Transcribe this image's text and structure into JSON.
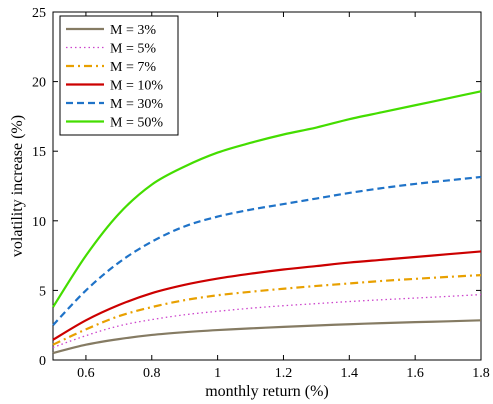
{
  "chart_data": {
    "type": "line",
    "xlabel": "monthly return (%)",
    "ylabel": "volatility increase (%)",
    "xlim": [
      0.5,
      1.8
    ],
    "ylim": [
      0,
      25
    ],
    "xticks": [
      0.6,
      0.8,
      1,
      1.2,
      1.4,
      1.6,
      1.8
    ],
    "xtick_labels": [
      "0.6",
      "0.8",
      "1",
      "1.2",
      "1.4",
      "1.6",
      "1.8"
    ],
    "yticks": [
      0,
      5,
      10,
      15,
      20,
      25
    ],
    "ytick_labels": [
      "0",
      "5",
      "10",
      "15",
      "20",
      "25"
    ],
    "grid": false,
    "legend_position": "top-left",
    "x": [
      0.5,
      0.6,
      0.7,
      0.8,
      0.9,
      1.0,
      1.1,
      1.2,
      1.3,
      1.4,
      1.5,
      1.6,
      1.7,
      1.8
    ],
    "series": [
      {
        "name": "M = 3%",
        "color": "#857b63",
        "dash": "solid",
        "values": [
          0.5,
          1.1,
          1.5,
          1.8,
          2.0,
          2.15,
          2.27,
          2.38,
          2.48,
          2.57,
          2.65,
          2.72,
          2.78,
          2.85
        ]
      },
      {
        "name": "M = 5%",
        "color": "#cc44cc",
        "dash": "dotted",
        "values": [
          0.9,
          1.75,
          2.45,
          2.9,
          3.25,
          3.5,
          3.72,
          3.9,
          4.05,
          4.2,
          4.33,
          4.45,
          4.57,
          4.7
        ]
      },
      {
        "name": "M = 7%",
        "color": "#e8a000",
        "dash": "dashdot",
        "values": [
          1.1,
          2.2,
          3.15,
          3.8,
          4.3,
          4.65,
          4.9,
          5.12,
          5.32,
          5.5,
          5.68,
          5.83,
          5.97,
          6.1
        ]
      },
      {
        "name": "M = 10%",
        "color": "#cc0000",
        "dash": "solid",
        "values": [
          1.45,
          2.85,
          3.95,
          4.8,
          5.4,
          5.85,
          6.2,
          6.5,
          6.75,
          7.0,
          7.2,
          7.4,
          7.6,
          7.8
        ]
      },
      {
        "name": "M = 30%",
        "color": "#1f73c8",
        "dash": "dashed",
        "values": [
          2.5,
          5.0,
          7.0,
          8.5,
          9.6,
          10.3,
          10.8,
          11.2,
          11.6,
          12.0,
          12.35,
          12.65,
          12.9,
          13.15
        ]
      },
      {
        "name": "M = 50%",
        "color": "#44dd00",
        "dash": "solid",
        "values": [
          3.8,
          7.5,
          10.5,
          12.6,
          13.9,
          14.9,
          15.6,
          16.2,
          16.7,
          17.3,
          17.8,
          18.3,
          18.8,
          19.3
        ]
      }
    ]
  }
}
